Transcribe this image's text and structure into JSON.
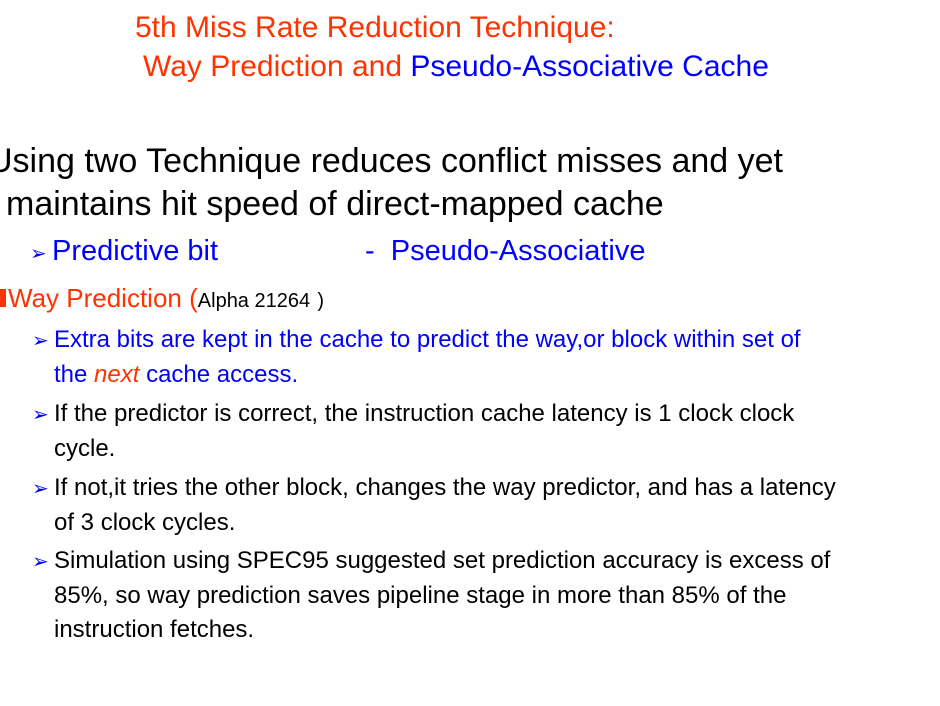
{
  "title": {
    "line1": "5th Miss Rate Reduction Technique:",
    "line2_part1": "Way Prediction and ",
    "line2_part2": "Pseudo-Associative Cache"
  },
  "main_point": {
    "line1": "Using two Technique reduces conflict misses and yet",
    "line2": "maintains hit speed of direct-mapped cache"
  },
  "sub_topics": {
    "left": "Predictive bit",
    "separator": "-",
    "right": "Pseudo-Associative"
  },
  "way_prediction": {
    "label": "Way Prediction",
    "open_paren": "(",
    "processor": "Alpha 21264",
    "close_paren": ")"
  },
  "bullets": [
    {
      "line1": "Extra bits are kept in the cache to predict the way,or block within set of",
      "line2_pre": "the ",
      "line2_italic": "next",
      "line2_post": " cache access."
    },
    {
      "line1": "If the predictor is correct, the instruction cache latency is 1 clock clock",
      "line2": "cycle."
    },
    {
      "line1": "If not,it tries the other block, changes the way predictor, and has a latency",
      "line2": "of 3 clock cycles."
    },
    {
      "line1": "Simulation using SPEC95 suggested set prediction accuracy is excess of",
      "line2": "85%, so way prediction saves pipeline stage in more than 85% of the",
      "line3": "instruction fetches."
    }
  ],
  "colors": {
    "title_red": "#ff3300",
    "blue": "#0000ff",
    "text": "#000000"
  },
  "icons": {
    "bullet": "arrow-bullet-icon",
    "level1": "square-bullet-icon"
  }
}
